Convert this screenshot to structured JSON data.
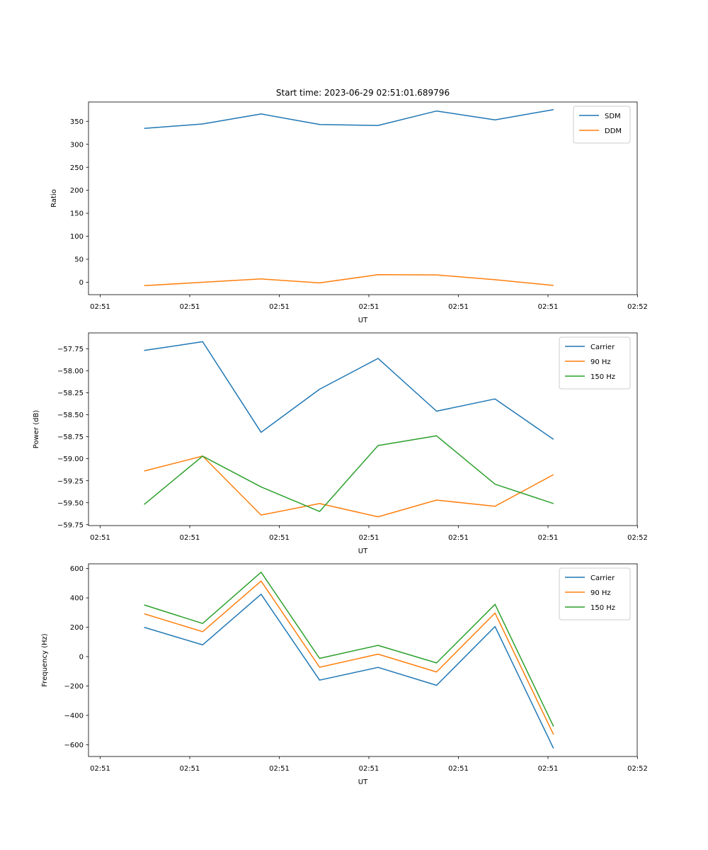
{
  "chart_data": [
    {
      "type": "line",
      "title": "Start time: 2023-06-29 02:51:01.689796",
      "xlabel": "UT",
      "ylabel": "Ratio",
      "x_tick_labels": [
        "02:51",
        "02:51",
        "02:51",
        "02:51",
        "02:51",
        "02:51",
        "02:51",
        "02:52"
      ],
      "yticks": [
        0,
        50,
        100,
        150,
        200,
        250,
        300,
        350
      ],
      "ylim": [
        -27,
        392
      ],
      "legend_position": "top-right",
      "colors": [
        "#1f77b4",
        "#ff7f0e"
      ],
      "series": [
        {
          "name": "SDM",
          "values": [
            334.5,
            344.2,
            366.0,
            343.0,
            341.0,
            372.5,
            353.0,
            375.5
          ]
        },
        {
          "name": "DDM",
          "values": [
            -7.5,
            0.0,
            7.2,
            -1.5,
            16.5,
            16.0,
            5.5,
            -7.0
          ]
        }
      ]
    },
    {
      "type": "line",
      "title": "",
      "xlabel": "UT",
      "ylabel": "Power (dB)",
      "x_tick_labels": [
        "02:51",
        "02:51",
        "02:51",
        "02:51",
        "02:51",
        "02:51",
        "02:51",
        "02:52"
      ],
      "yticks": [
        -59.75,
        -59.5,
        -59.25,
        -59.0,
        -58.75,
        -58.5,
        -58.25,
        -58.0,
        -57.75
      ],
      "ytick_labels": [
        "−59.75",
        "−59.50",
        "−59.25",
        "−59.00",
        "−58.75",
        "−58.50",
        "−58.25",
        "−58.00",
        "−57.75"
      ],
      "ylim": [
        -59.76,
        -57.57
      ],
      "legend_position": "top-right",
      "colors": [
        "#1f77b4",
        "#ff7f0e",
        "#2ca02c"
      ],
      "series": [
        {
          "name": "Carrier",
          "values": [
            -57.77,
            -57.67,
            -58.7,
            -58.21,
            -57.86,
            -58.46,
            -58.32,
            -58.78
          ]
        },
        {
          "name": "90 Hz",
          "values": [
            -59.14,
            -58.97,
            -59.64,
            -59.51,
            -59.66,
            -59.47,
            -59.54,
            -59.18
          ]
        },
        {
          "name": "150 Hz",
          "values": [
            -59.52,
            -58.97,
            -59.32,
            -59.6,
            -58.85,
            -58.74,
            -59.29,
            -59.51
          ]
        }
      ]
    },
    {
      "type": "line",
      "title": "",
      "xlabel": "UT",
      "ylabel": "Frequency (Hz)",
      "x_tick_labels": [
        "02:51",
        "02:51",
        "02:51",
        "02:51",
        "02:51",
        "02:51",
        "02:51",
        "02:52"
      ],
      "yticks": [
        -600,
        -400,
        -200,
        0,
        200,
        400,
        600
      ],
      "ytick_labels": [
        "−600",
        "−400",
        "−200",
        "0",
        "200",
        "400",
        "600"
      ],
      "ylim": [
        -680,
        632
      ],
      "legend_position": "top-right",
      "colors": [
        "#1f77b4",
        "#ff7f0e",
        "#2ca02c"
      ],
      "series": [
        {
          "name": "Carrier",
          "values": [
            200,
            80,
            425,
            -160,
            -73,
            -195,
            205,
            -625
          ]
        },
        {
          "name": "90 Hz",
          "values": [
            292,
            170,
            515,
            -72,
            17,
            -104,
            297,
            -530
          ]
        },
        {
          "name": "150 Hz",
          "values": [
            352,
            226,
            575,
            -12,
            77,
            -43,
            356,
            -475
          ]
        }
      ]
    }
  ]
}
